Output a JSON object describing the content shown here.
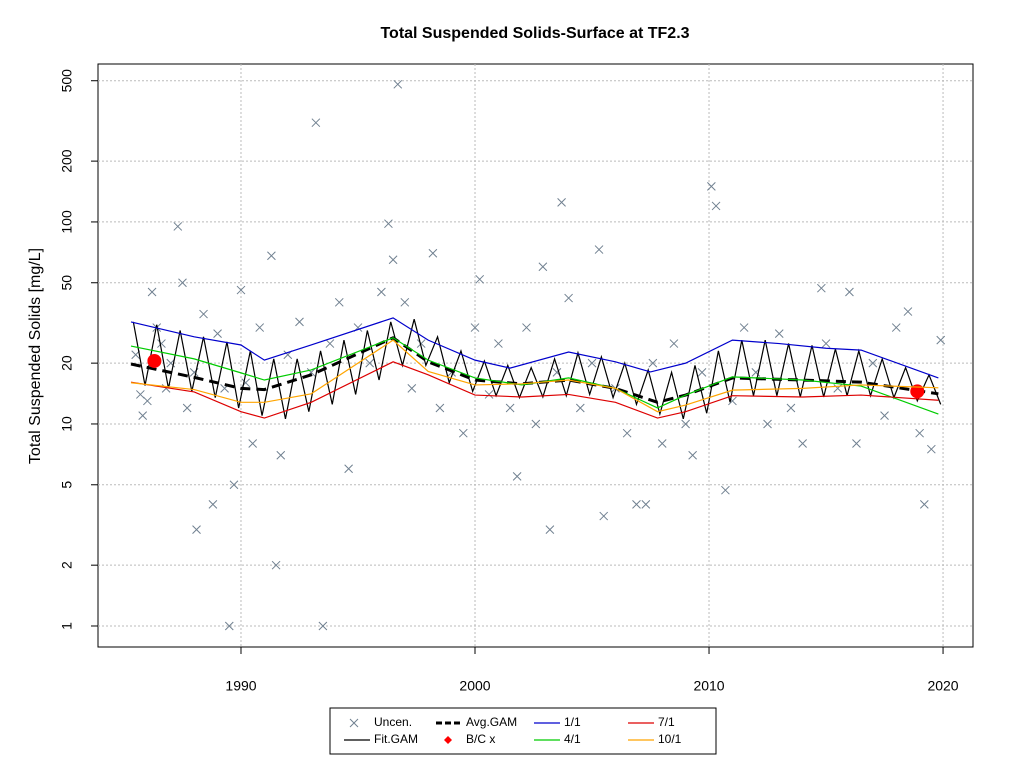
{
  "chart_data": {
    "type": "line",
    "title": "Total Suspended Solids-Surface at TF2.3",
    "y_label": "Total Suspended Solids [mg/L]",
    "log_y": true,
    "grid": true,
    "xlim": [
      1983.89,
      2021.28
    ],
    "xticks": [
      1990,
      2000,
      2010,
      2020
    ],
    "ylim": [
      0.787,
      605
    ],
    "yticks": [
      1,
      2,
      5,
      10,
      20,
      50,
      100,
      200,
      500
    ],
    "series": [
      {
        "name": "Uncen.",
        "color": "#708090",
        "marker": "x",
        "x": [
          1985.5,
          1985.7,
          1985.8,
          1986.0,
          1986.2,
          1986.4,
          1986.6,
          1986.8,
          1987.0,
          1987.3,
          1987.5,
          1987.7,
          1988.0,
          1988.1,
          1988.4,
          1988.8,
          1989.0,
          1989.3,
          1989.5,
          1989.7,
          1990.0,
          1990.2,
          1990.5,
          1990.8,
          1991.3,
          1991.5,
          1991.7,
          1992.0,
          1992.5,
          1993.0,
          1993.2,
          1993.5,
          1993.8,
          1994.2,
          1994.6,
          1995.0,
          1995.5,
          1996.0,
          1996.3,
          1996.5,
          1996.7,
          1997.0,
          1997.3,
          1997.7,
          1998.2,
          1998.5,
          1999.0,
          1999.5,
          2000.0,
          2000.2,
          2000.6,
          2001.0,
          2001.5,
          2001.8,
          2002.2,
          2002.6,
          2002.9,
          2003.2,
          2003.5,
          2003.7,
          2004.0,
          2004.5,
          2005.0,
          2005.3,
          2005.5,
          2006.0,
          2006.5,
          2006.9,
          2007.3,
          2007.6,
          2008.0,
          2008.5,
          2009.0,
          2009.3,
          2009.7,
          2010.1,
          2010.3,
          2010.7,
          2011.0,
          2011.5,
          2012.0,
          2012.5,
          2013.0,
          2013.5,
          2014.0,
          2014.8,
          2015.0,
          2015.5,
          2016.0,
          2016.3,
          2017.0,
          2017.5,
          2018.0,
          2018.5,
          2019.0,
          2019.2,
          2019.5,
          2019.9
        ],
        "values": [
          22,
          14,
          11,
          13,
          45,
          30,
          25,
          15,
          20,
          95,
          50,
          12,
          18,
          3,
          35,
          4,
          28,
          15,
          1,
          5,
          46,
          16,
          8,
          30,
          68,
          2,
          7,
          22,
          32,
          18,
          310,
          1,
          25,
          40,
          6,
          30,
          20,
          45,
          98,
          65,
          480,
          40,
          15,
          25,
          70,
          12,
          18,
          9,
          30,
          52,
          14,
          25,
          12,
          5.5,
          30,
          10,
          60,
          3,
          18,
          125,
          42,
          12,
          20,
          73,
          3.5,
          15,
          9,
          4,
          4,
          20,
          8,
          25,
          10,
          7,
          18,
          150,
          120,
          4.7,
          13,
          30,
          18,
          10,
          28,
          12,
          8,
          47,
          25,
          15,
          45,
          8,
          20,
          11,
          30,
          36,
          9,
          4,
          7.5,
          26
        ]
      },
      {
        "name": "Fit.GAM",
        "color": "#000000",
        "marker": "line",
        "x": [
          1985.4,
          1985.9,
          1986.4,
          1986.9,
          1987.4,
          1987.9,
          1988.4,
          1988.9,
          1989.4,
          1989.9,
          1990.4,
          1990.9,
          1991.4,
          1991.9,
          1992.4,
          1992.9,
          1993.4,
          1993.9,
          1994.4,
          1994.9,
          1995.4,
          1995.9,
          1996.4,
          1996.9,
          1997.4,
          1997.9,
          1998.4,
          1998.9,
          1999.4,
          1999.9,
          2000.4,
          2000.9,
          2001.4,
          2001.9,
          2002.4,
          2002.9,
          2003.4,
          2003.9,
          2004.4,
          2004.9,
          2005.4,
          2005.9,
          2006.4,
          2006.9,
          2007.4,
          2007.9,
          2008.4,
          2008.9,
          2009.4,
          2009.9,
          2010.4,
          2010.9,
          2011.4,
          2011.9,
          2012.4,
          2012.9,
          2013.4,
          2013.9,
          2014.4,
          2014.9,
          2015.4,
          2015.9,
          2016.4,
          2016.9,
          2017.4,
          2017.9,
          2018.4,
          2018.9,
          2019.4,
          2019.9
        ],
        "values": [
          32,
          15.5,
          31,
          15,
          29,
          14.5,
          27,
          13.5,
          25.5,
          12,
          23,
          11,
          21,
          10.6,
          21,
          11.5,
          23,
          12.5,
          26,
          14,
          29,
          16.5,
          32,
          19.5,
          33,
          19.5,
          27,
          16,
          23,
          14.5,
          20.5,
          13.8,
          19.5,
          13.5,
          19,
          13.6,
          21,
          13.8,
          22.5,
          14,
          21.5,
          13.5,
          20,
          12.5,
          18.5,
          11.2,
          18,
          10.6,
          19.5,
          11.3,
          23,
          12.8,
          26,
          13.8,
          26,
          13.8,
          25,
          13.6,
          24.5,
          13.6,
          23.5,
          13.8,
          23,
          13.8,
          21,
          13.5,
          19,
          13,
          17.5,
          12.5
        ]
      },
      {
        "name": "Avg.GAM",
        "color": "#000000",
        "marker": "dashed",
        "x": [
          1985.3,
          1988,
          1990,
          1991,
          1993,
          1996.5,
          1998,
          2000,
          2002,
          2004,
          2006,
          2007.8,
          2009,
          2011,
          2014,
          2016.5,
          2019.8
        ],
        "values": [
          19.8,
          17,
          15,
          14.8,
          17.5,
          26.7,
          20.3,
          16.5,
          15.8,
          16.5,
          15,
          12.8,
          13.9,
          16.9,
          16.5,
          16.1,
          14.1
        ]
      },
      {
        "name": "B/C x",
        "color": "#ff0000",
        "marker": "circle",
        "x": [
          1986.3,
          2018.9
        ],
        "values": [
          20.5,
          14.5
        ]
      },
      {
        "name": "1/1",
        "color": "#0000cc",
        "marker": "line",
        "x": [
          1985.3,
          1988,
          1990,
          1991,
          1993,
          1996.5,
          1998,
          2000,
          2001.5,
          2004,
          2006,
          2007.5,
          2009,
          2011,
          2013,
          2015,
          2016.5,
          2019.8
        ],
        "values": [
          32,
          27,
          24.6,
          20.7,
          24.6,
          33.5,
          26,
          20.7,
          18.9,
          22.7,
          20.3,
          18.1,
          20,
          26,
          25,
          23.7,
          23.2,
          16.9
        ]
      },
      {
        "name": "4/1",
        "color": "#00cc00",
        "marker": "line",
        "x": [
          1985.3,
          1988,
          1990,
          1991,
          1993,
          1996.5,
          1998,
          2000,
          2002,
          2004,
          2006,
          2007.8,
          2009,
          2011,
          2014,
          2016.5,
          2019.8
        ],
        "values": [
          24.3,
          21,
          17.9,
          16.5,
          18.5,
          26.7,
          20.7,
          16.9,
          15.6,
          16.9,
          15,
          12,
          13.9,
          17.1,
          16.5,
          15.4,
          11.2
        ]
      },
      {
        "name": "7/1",
        "color": "#dd0000",
        "marker": "line",
        "x": [
          1985.3,
          1988,
          1990,
          1991,
          1993,
          1996.5,
          1998,
          2000,
          2002,
          2004,
          2006,
          2007.8,
          2009,
          2011,
          2014,
          2016.5,
          2019.8
        ],
        "values": [
          16.1,
          14.4,
          11.5,
          10.7,
          12.8,
          20.3,
          17.5,
          13.9,
          13.6,
          14,
          12.8,
          10.7,
          11.5,
          13.8,
          13.6,
          13.9,
          13.1
        ]
      },
      {
        "name": "10/1",
        "color": "#ffa500",
        "marker": "line",
        "x": [
          1985.3,
          1988,
          1990,
          1991,
          1993,
          1996.5,
          1998,
          2000,
          2002,
          2004,
          2006,
          2007.8,
          2009,
          2011,
          2014,
          2016.5,
          2019.8
        ],
        "values": [
          16,
          14.8,
          12.8,
          12.8,
          14.1,
          26,
          18.2,
          15.6,
          15.8,
          16.5,
          15,
          11.5,
          12.4,
          14.7,
          15,
          15.6,
          15.1
        ]
      }
    ]
  }
}
